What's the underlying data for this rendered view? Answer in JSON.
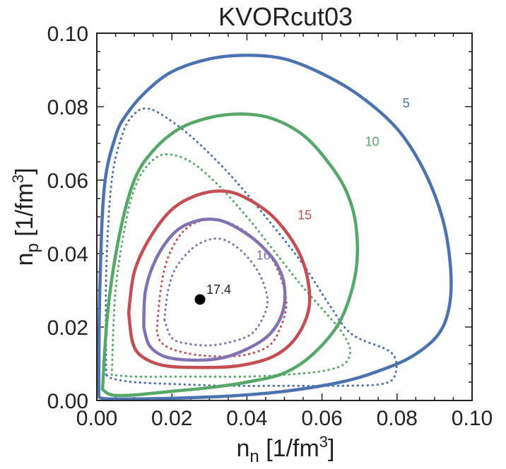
{
  "chart_data": {
    "type": "line",
    "title": "KVORcut03",
    "xlabel": {
      "base": "n",
      "sub": "n",
      "unit_pre": " [1/fm",
      "sup": "3",
      "unit_post": "]"
    },
    "ylabel": {
      "base": "n",
      "sub": "p",
      "unit_pre": " [1/fm",
      "sup": "3",
      "unit_post": "]"
    },
    "xlim": [
      0.0,
      0.1
    ],
    "ylim": [
      0.0,
      0.1
    ],
    "xticks": [
      0.0,
      0.02,
      0.04,
      0.06,
      0.08,
      0.1
    ],
    "xtick_labels": [
      "0.00",
      "0.02",
      "0.04",
      "0.06",
      "0.08",
      "0.10"
    ],
    "yticks": [
      0.0,
      0.02,
      0.04,
      0.06,
      0.08,
      0.1
    ],
    "ytick_labels": [
      "0.00",
      "0.02",
      "0.04",
      "0.06",
      "0.08",
      "0.10"
    ],
    "series": [
      {
        "name": "5",
        "color": "#4c72b0",
        "style": "solid",
        "label_pos": [
          0.0815,
          0.081
        ],
        "points": [
          [
            0.0005,
            0.001
          ],
          [
            0.0008,
            0.03
          ],
          [
            0.002,
            0.058
          ],
          [
            0.005,
            0.072
          ],
          [
            0.008,
            0.078
          ],
          [
            0.013,
            0.084
          ],
          [
            0.02,
            0.0895
          ],
          [
            0.03,
            0.093
          ],
          [
            0.04,
            0.094
          ],
          [
            0.05,
            0.093
          ],
          [
            0.06,
            0.089
          ],
          [
            0.07,
            0.083
          ],
          [
            0.08,
            0.074
          ],
          [
            0.087,
            0.063
          ],
          [
            0.092,
            0.05
          ],
          [
            0.0942,
            0.037
          ],
          [
            0.094,
            0.026
          ],
          [
            0.091,
            0.018
          ],
          [
            0.084,
            0.012
          ],
          [
            0.075,
            0.008
          ],
          [
            0.065,
            0.005
          ],
          [
            0.05,
            0.0025
          ],
          [
            0.035,
            0.0012
          ],
          [
            0.02,
            0.0006
          ],
          [
            0.008,
            0.0004
          ],
          [
            0.002,
            0.0005
          ],
          [
            0.0005,
            0.001
          ]
        ]
      },
      {
        "name": "5",
        "color": "#4c72b0",
        "style": "dotted",
        "points": [
          [
            0.0025,
            0.007
          ],
          [
            0.0025,
            0.035
          ],
          [
            0.004,
            0.06
          ],
          [
            0.007,
            0.073
          ],
          [
            0.01,
            0.078
          ],
          [
            0.013,
            0.0795
          ],
          [
            0.017,
            0.078
          ],
          [
            0.025,
            0.072
          ],
          [
            0.035,
            0.062
          ],
          [
            0.045,
            0.05
          ],
          [
            0.055,
            0.037
          ],
          [
            0.062,
            0.026
          ],
          [
            0.068,
            0.018
          ],
          [
            0.0785,
            0.013
          ],
          [
            0.0795,
            0.007
          ],
          [
            0.076,
            0.0045
          ],
          [
            0.065,
            0.004
          ],
          [
            0.05,
            0.004
          ],
          [
            0.035,
            0.004
          ],
          [
            0.02,
            0.0045
          ],
          [
            0.01,
            0.005
          ],
          [
            0.004,
            0.006
          ],
          [
            0.0025,
            0.007
          ]
        ]
      },
      {
        "name": "10",
        "color": "#55a868",
        "style": "solid",
        "label_pos": [
          0.0715,
          0.0705
        ],
        "points": [
          [
            0.0015,
            0.003
          ],
          [
            0.003,
            0.025
          ],
          [
            0.006,
            0.045
          ],
          [
            0.01,
            0.06
          ],
          [
            0.015,
            0.068
          ],
          [
            0.022,
            0.074
          ],
          [
            0.03,
            0.077
          ],
          [
            0.038,
            0.078
          ],
          [
            0.046,
            0.077
          ],
          [
            0.054,
            0.073
          ],
          [
            0.06,
            0.067
          ],
          [
            0.066,
            0.058
          ],
          [
            0.069,
            0.048
          ],
          [
            0.069,
            0.035
          ],
          [
            0.065,
            0.022
          ],
          [
            0.058,
            0.013
          ],
          [
            0.05,
            0.0075
          ],
          [
            0.04,
            0.005
          ],
          [
            0.03,
            0.0035
          ],
          [
            0.02,
            0.0025
          ],
          [
            0.01,
            0.0015
          ],
          [
            0.004,
            0.0015
          ],
          [
            0.0015,
            0.003
          ]
        ]
      },
      {
        "name": "10",
        "color": "#55a868",
        "style": "dotted",
        "points": [
          [
            0.004,
            0.007
          ],
          [
            0.005,
            0.03
          ],
          [
            0.008,
            0.05
          ],
          [
            0.011,
            0.06
          ],
          [
            0.015,
            0.0655
          ],
          [
            0.019,
            0.067
          ],
          [
            0.025,
            0.065
          ],
          [
            0.032,
            0.059
          ],
          [
            0.04,
            0.05
          ],
          [
            0.047,
            0.041
          ],
          [
            0.054,
            0.032
          ],
          [
            0.06,
            0.025
          ],
          [
            0.065,
            0.019
          ],
          [
            0.0675,
            0.014
          ],
          [
            0.066,
            0.01
          ],
          [
            0.06,
            0.008
          ],
          [
            0.05,
            0.007
          ],
          [
            0.04,
            0.0065
          ],
          [
            0.03,
            0.0065
          ],
          [
            0.02,
            0.0065
          ],
          [
            0.01,
            0.0065
          ],
          [
            0.004,
            0.007
          ]
        ]
      },
      {
        "name": "15",
        "color": "#c44e52",
        "style": "solid",
        "label_pos": [
          0.0535,
          0.0505
        ],
        "points": [
          [
            0.0085,
            0.024
          ],
          [
            0.01,
            0.035
          ],
          [
            0.014,
            0.044
          ],
          [
            0.02,
            0.052
          ],
          [
            0.027,
            0.056
          ],
          [
            0.034,
            0.057
          ],
          [
            0.04,
            0.055
          ],
          [
            0.047,
            0.05
          ],
          [
            0.053,
            0.042
          ],
          [
            0.056,
            0.034
          ],
          [
            0.0565,
            0.025
          ],
          [
            0.053,
            0.017
          ],
          [
            0.047,
            0.012
          ],
          [
            0.038,
            0.0095
          ],
          [
            0.028,
            0.009
          ],
          [
            0.018,
            0.0095
          ],
          [
            0.012,
            0.012
          ],
          [
            0.0095,
            0.016
          ],
          [
            0.0085,
            0.024
          ]
        ]
      },
      {
        "name": "15",
        "color": "#c44e52",
        "style": "dotted",
        "points": [
          [
            0.016,
            0.019
          ],
          [
            0.017,
            0.03
          ],
          [
            0.019,
            0.039
          ],
          [
            0.023,
            0.046
          ],
          [
            0.028,
            0.049
          ],
          [
            0.033,
            0.049
          ],
          [
            0.038,
            0.047
          ],
          [
            0.043,
            0.043
          ],
          [
            0.047,
            0.038
          ],
          [
            0.0495,
            0.032
          ],
          [
            0.0505,
            0.026
          ],
          [
            0.049,
            0.02
          ],
          [
            0.046,
            0.015
          ],
          [
            0.04,
            0.0125
          ],
          [
            0.033,
            0.012
          ],
          [
            0.026,
            0.0125
          ],
          [
            0.02,
            0.014
          ],
          [
            0.017,
            0.016
          ],
          [
            0.016,
            0.019
          ]
        ]
      },
      {
        "name": "16",
        "color": "#8172b2",
        "style": "solid",
        "label_pos": [
          0.0425,
          0.0395
        ],
        "points": [
          [
            0.0125,
            0.02
          ],
          [
            0.013,
            0.03
          ],
          [
            0.016,
            0.039
          ],
          [
            0.021,
            0.046
          ],
          [
            0.027,
            0.049
          ],
          [
            0.033,
            0.049
          ],
          [
            0.039,
            0.046
          ],
          [
            0.044,
            0.042
          ],
          [
            0.048,
            0.037
          ],
          [
            0.05,
            0.031
          ],
          [
            0.0495,
            0.024
          ],
          [
            0.046,
            0.018
          ],
          [
            0.04,
            0.014
          ],
          [
            0.033,
            0.0115
          ],
          [
            0.025,
            0.011
          ],
          [
            0.018,
            0.012
          ],
          [
            0.014,
            0.015
          ],
          [
            0.0125,
            0.02
          ]
        ]
      },
      {
        "name": "16",
        "color": "#8172b2",
        "style": "dotted",
        "points": [
          [
            0.018,
            0.022
          ],
          [
            0.019,
            0.03
          ],
          [
            0.021,
            0.036
          ],
          [
            0.025,
            0.041
          ],
          [
            0.029,
            0.0435
          ],
          [
            0.033,
            0.044
          ],
          [
            0.037,
            0.042
          ],
          [
            0.041,
            0.038
          ],
          [
            0.044,
            0.033
          ],
          [
            0.0455,
            0.027
          ],
          [
            0.044,
            0.022
          ],
          [
            0.041,
            0.018
          ],
          [
            0.036,
            0.016
          ],
          [
            0.03,
            0.015
          ],
          [
            0.024,
            0.0155
          ],
          [
            0.02,
            0.017
          ],
          [
            0.018,
            0.022
          ]
        ]
      }
    ],
    "center_point": {
      "x": 0.0275,
      "y": 0.0275,
      "label": "17.4",
      "color": "#000000"
    }
  }
}
